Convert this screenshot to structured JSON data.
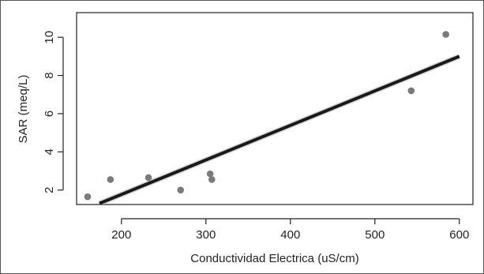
{
  "chart_data": {
    "type": "scatter",
    "title": "",
    "xlabel": "Conductividad Electrica (uS/cm)",
    "ylabel": "SAR (meq/L)",
    "xlim": [
      150,
      600
    ],
    "ylim": [
      1.3,
      10.4
    ],
    "x_ticks": [
      200,
      300,
      400,
      500,
      600
    ],
    "x_tick_labels": [
      "200",
      "300",
      "400",
      "500",
      "600"
    ],
    "y_ticks": [
      2,
      4,
      6,
      8,
      10
    ],
    "y_tick_labels": [
      "2",
      "4",
      "6",
      "8",
      "10"
    ],
    "grid": false,
    "legend": "none",
    "series": [
      {
        "points": [
          {
            "x": 160,
            "y": 1.65
          },
          {
            "x": 187,
            "y": 2.55
          },
          {
            "x": 232,
            "y": 2.65
          },
          {
            "x": 270,
            "y": 2.0
          },
          {
            "x": 305,
            "y": 2.85
          },
          {
            "x": 307,
            "y": 2.55
          },
          {
            "x": 543,
            "y": 7.2
          },
          {
            "x": 584,
            "y": 10.15
          }
        ]
      }
    ],
    "fit_line": {
      "type": "linear",
      "from": {
        "x": 174,
        "y": 1.3
      },
      "to": {
        "x": 600,
        "y": 9.0
      }
    },
    "colors": {
      "points": "#7a7a7a",
      "line": "#1a1a1a",
      "axis": "#222222"
    }
  }
}
